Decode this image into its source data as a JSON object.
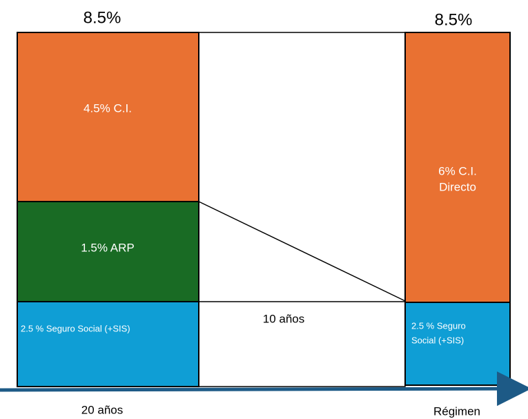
{
  "left": {
    "top_label": "8.5%",
    "segments": [
      {
        "label": "4.5% C.I."
      },
      {
        "label": "1.5% ARP"
      },
      {
        "label": "2.5 % Seguro Social (+SIS)"
      }
    ],
    "bottom_label": "20 años"
  },
  "middle": {
    "label": "10 años"
  },
  "right": {
    "top_label": "8.5%",
    "segments": [
      {
        "lines": [
          "6% C.I.",
          "Directo"
        ]
      },
      {
        "lines": [
          "2.5 % Seguro",
          "Social (+SIS)"
        ]
      }
    ],
    "bottom_label": "Régimen"
  }
}
